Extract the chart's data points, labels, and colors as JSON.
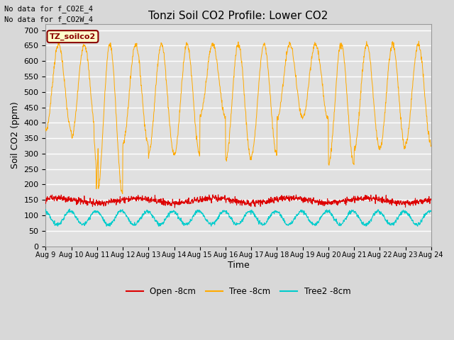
{
  "title": "Tonzi Soil CO2 Profile: Lower CO2",
  "xlabel": "Time",
  "ylabel": "Soil CO2 (ppm)",
  "no_data_text": [
    "No data for f_CO2E_4",
    "No data for f_CO2W_4"
  ],
  "legend_label_text": "TZ_soilco2",
  "ylim": [
    0,
    720
  ],
  "yticks": [
    0,
    50,
    100,
    150,
    200,
    250,
    300,
    350,
    400,
    450,
    500,
    550,
    600,
    650,
    700
  ],
  "x_tick_labels": [
    "Aug 9",
    "Aug 10",
    "Aug 11",
    "Aug 12",
    "Aug 13",
    "Aug 14",
    "Aug 15",
    "Aug 16",
    "Aug 17",
    "Aug 18",
    "Aug 19",
    "Aug 20",
    "Aug 21",
    "Aug 22",
    "Aug 23",
    "Aug 24"
  ],
  "color_open": "#dd0000",
  "color_tree": "#ffaa00",
  "color_tree2": "#00cccc",
  "legend_entries": [
    "Open -8cm",
    "Tree -8cm",
    "Tree2 -8cm"
  ],
  "bg_color": "#e0e0e0",
  "grid_color": "#ffffff",
  "title_fontsize": 11,
  "axis_fontsize": 9,
  "tick_fontsize": 8
}
